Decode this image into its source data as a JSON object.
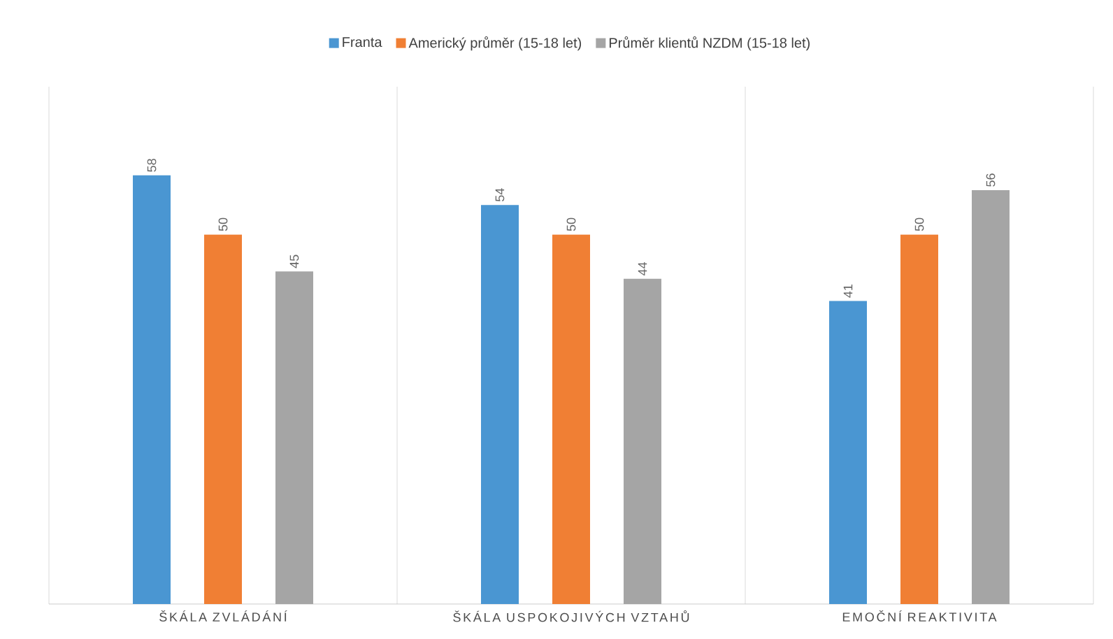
{
  "chart_data": {
    "type": "bar",
    "categories": [
      "ŠKÁLA ZVLÁDÁNÍ",
      "ŠKÁLA USPOKOJIVÝCH VZTAHŮ",
      "EMOČNÍ REAKTIVITA"
    ],
    "series": [
      {
        "name": "Franta",
        "color": "#4a96d2",
        "values": [
          58,
          54,
          41
        ]
      },
      {
        "name": "Americký průměr (15-18 let)",
        "color": "#f07f34",
        "values": [
          50,
          50,
          50
        ]
      },
      {
        "name": "Průměr klientů NZDM (15-18 let)",
        "color": "#a5a5a5",
        "values": [
          45,
          44,
          56
        ]
      }
    ],
    "ylim": [
      0,
      70
    ],
    "tick_labels": "x",
    "data_labels": true,
    "grid": "x",
    "legend": "top"
  }
}
